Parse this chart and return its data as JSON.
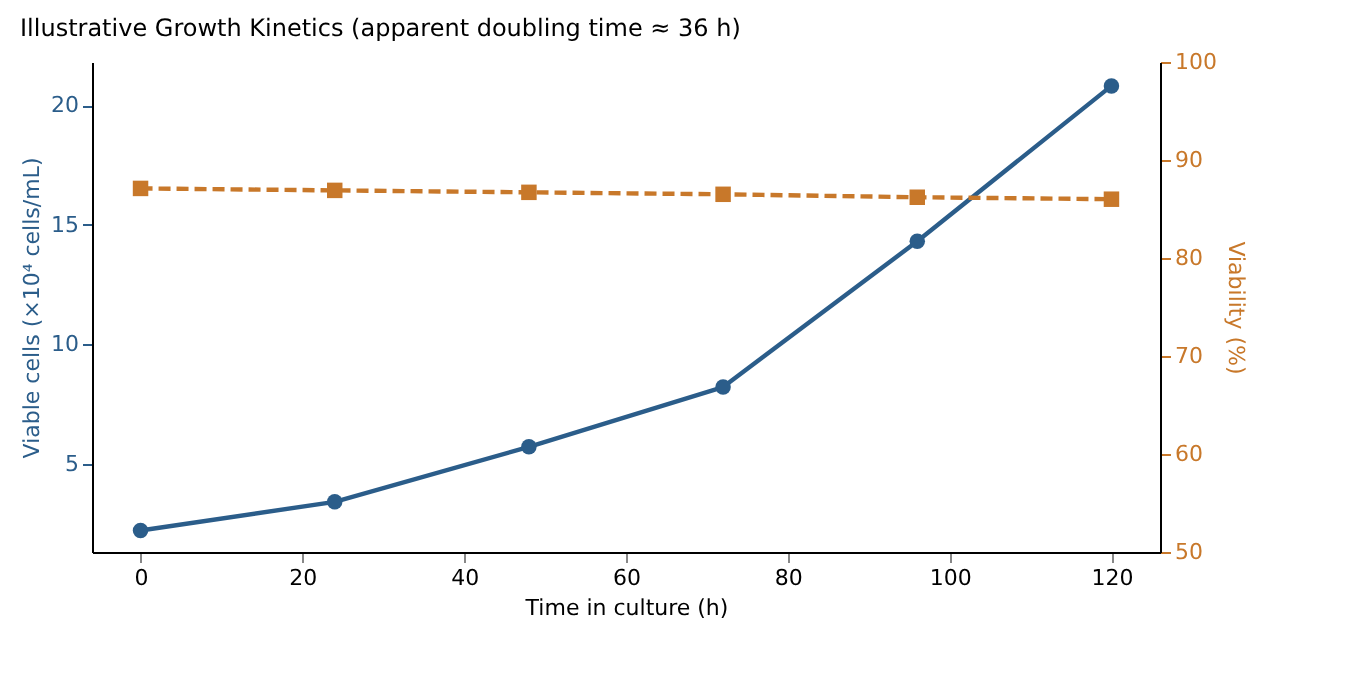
{
  "chart_data": {
    "type": "line",
    "title": "Illustrative Growth Kinetics (apparent doubling time ≈ 36 h)",
    "xlabel": "Time in culture (h)",
    "ylabel": "Viable cells (×10⁴ cells/mL)",
    "y2label": "Viability (%)",
    "x": [
      0,
      24,
      48,
      72,
      96,
      120
    ],
    "xlim": [
      -6,
      126
    ],
    "xticks": [
      0,
      20,
      40,
      60,
      80,
      100,
      120
    ],
    "ylim": [
      1.3,
      21.8
    ],
    "yticks": [
      5,
      10,
      15,
      20
    ],
    "y2lim": [
      50,
      100
    ],
    "y2ticks": [
      50,
      60,
      70,
      80,
      90,
      100
    ],
    "grid": false,
    "series": [
      {
        "color": "#2b5d8a",
        "values": [
          2.2,
          3.4,
          5.7,
          8.2,
          14.3,
          20.8
        ],
        "marker": "circle",
        "line_style": "solid"
      },
      {
        "color": "#c8782a",
        "values": [
          87.1,
          86.9,
          86.7,
          86.5,
          86.2,
          86.0
        ],
        "axis": "y2",
        "marker": "square",
        "line_style": "dashed"
      }
    ]
  }
}
